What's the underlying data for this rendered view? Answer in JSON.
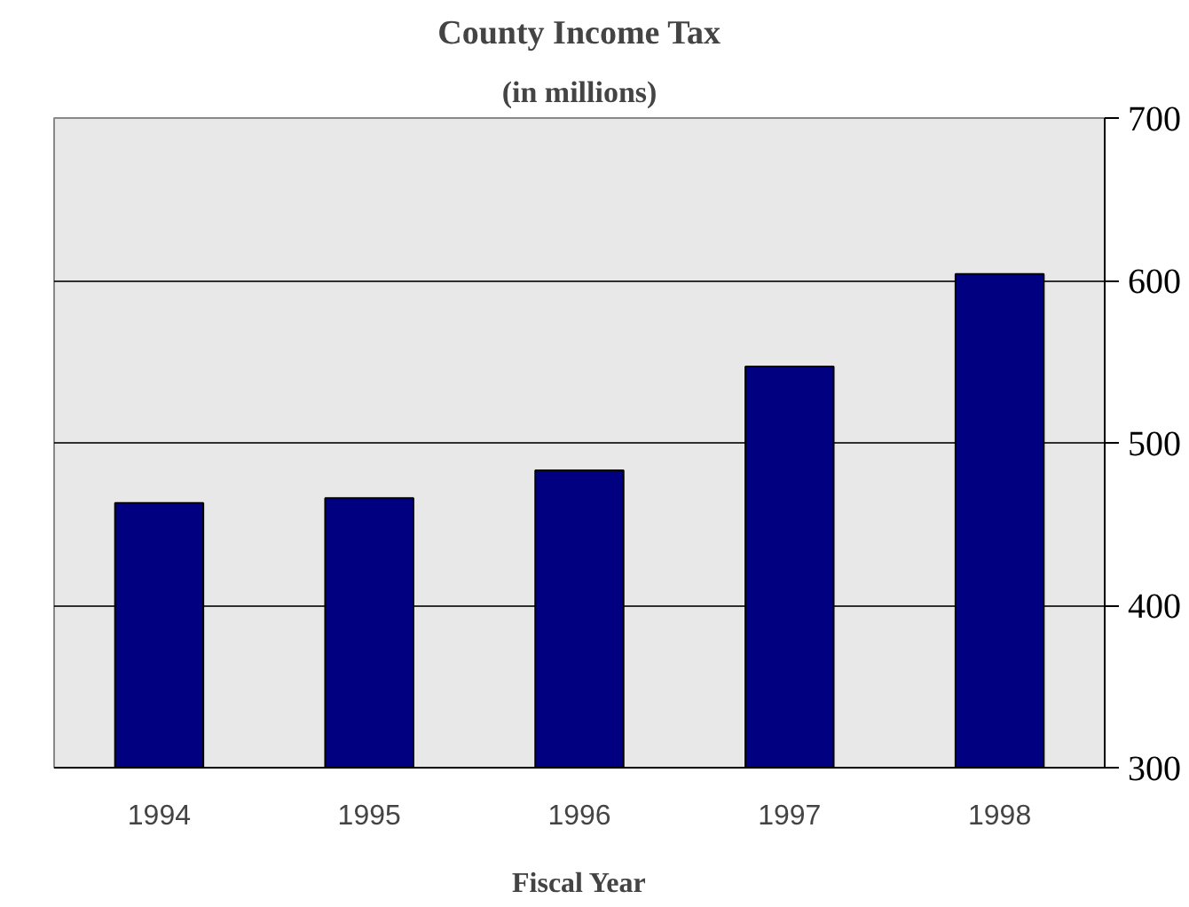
{
  "chart_data": {
    "type": "bar",
    "title": "County Income Tax",
    "subtitle": "(in millions)",
    "xlabel": "Fiscal Year",
    "categories": [
      "1994",
      "1995",
      "1996",
      "1997",
      "1998"
    ],
    "values": [
      463,
      466,
      483,
      547,
      604
    ],
    "color": "#000080",
    "ylim": [
      300,
      700
    ],
    "yticks": [
      300,
      400,
      500,
      600,
      700
    ],
    "grid": "y"
  }
}
